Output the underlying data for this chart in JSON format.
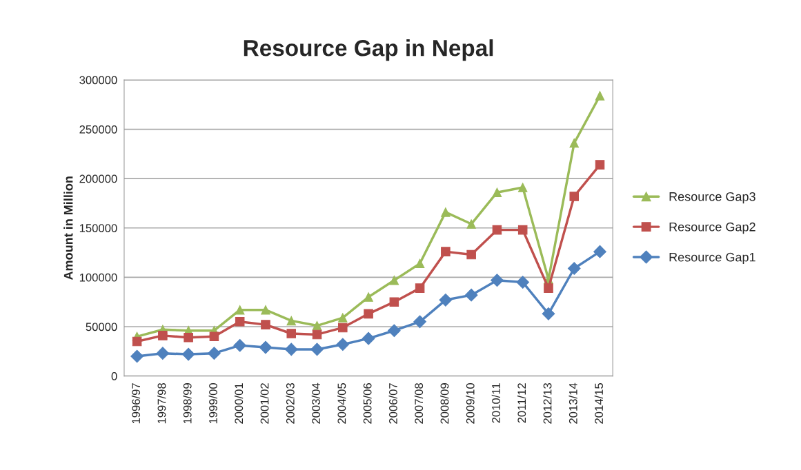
{
  "chart_data": {
    "type": "line",
    "title": "Resource Gap in Nepal",
    "ylabel": "Amount in Million",
    "categories": [
      "1996/97",
      "1997/98",
      "1998/99",
      "1999/00",
      "2000/01",
      "2001/02",
      "2002/03",
      "2003/04",
      "2004/05",
      "2005/06",
      "2006/07",
      "2007/08",
      "2008/09",
      "2009/10",
      "2010/11",
      "2011/12",
      "2012/13",
      "2013/14",
      "2014/15"
    ],
    "series": [
      {
        "name": "Resource Gap3",
        "color": "#9bbb59",
        "marker": "triangle",
        "values": [
          40000,
          47000,
          46000,
          46000,
          67000,
          67000,
          56000,
          51000,
          59000,
          80000,
          97000,
          114000,
          166000,
          154000,
          186000,
          191000,
          98000,
          236000,
          284000
        ]
      },
      {
        "name": "Resource Gap2",
        "color": "#c0504d",
        "marker": "square",
        "values": [
          35000,
          41000,
          39000,
          40000,
          55000,
          52000,
          43000,
          42000,
          49000,
          63000,
          75000,
          89000,
          126000,
          123000,
          148000,
          148000,
          89000,
          182000,
          214000
        ]
      },
      {
        "name": "Resource Gap1",
        "color": "#4f81bd",
        "marker": "diamond",
        "values": [
          20000,
          23000,
          22000,
          23000,
          31000,
          29000,
          27000,
          27000,
          32000,
          38000,
          46000,
          55000,
          77000,
          82000,
          97000,
          95000,
          63000,
          109000,
          126000
        ]
      }
    ],
    "ylim": [
      0,
      300000
    ],
    "yticks": [
      0,
      50000,
      100000,
      150000,
      200000,
      250000,
      300000
    ],
    "grid": "y",
    "legend": "right",
    "line_style": "solid"
  }
}
